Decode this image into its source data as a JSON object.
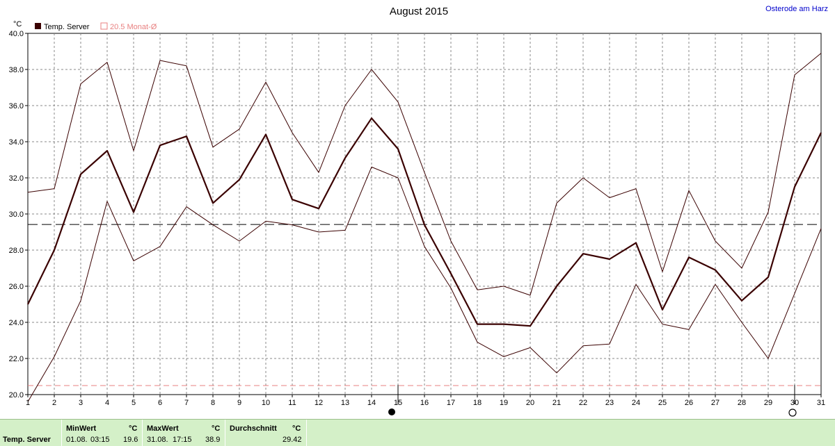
{
  "chart_data": {
    "type": "line",
    "title": "August 2015",
    "location": "Osterode am Harz",
    "ylabel": "°C",
    "ylim": [
      20.0,
      40.0
    ],
    "yticks": [
      "20.0",
      "22.0",
      "24.0",
      "26.0",
      "28.0",
      "30.0",
      "32.0",
      "34.0",
      "36.0",
      "38.0",
      "40.0"
    ],
    "x": [
      1,
      2,
      3,
      4,
      5,
      6,
      7,
      8,
      9,
      10,
      11,
      12,
      13,
      14,
      15,
      16,
      17,
      18,
      19,
      20,
      21,
      22,
      23,
      24,
      25,
      26,
      27,
      28,
      29,
      30,
      31
    ],
    "grid": true,
    "legend": [
      {
        "label": "Temp. Server",
        "color": "#3a0000"
      },
      {
        "label": "20.5 Monat-Ø",
        "color": "#e88080"
      }
    ],
    "series": [
      {
        "name": "Temp. Server",
        "kind": "mean",
        "color": "#3a0000",
        "values": [
          25.0,
          28.0,
          32.2,
          33.5,
          30.1,
          33.8,
          34.3,
          30.6,
          31.9,
          34.4,
          30.8,
          30.3,
          33.1,
          35.3,
          33.6,
          29.4,
          26.7,
          23.9,
          23.9,
          23.8,
          26.0,
          27.8,
          27.5,
          28.4,
          24.7,
          27.6,
          26.9,
          25.2,
          26.5,
          31.5,
          34.5
        ]
      },
      {
        "kind": "max",
        "color": "#3a0000",
        "values": [
          31.2,
          31.4,
          37.2,
          38.4,
          33.5,
          38.5,
          38.2,
          33.7,
          34.7,
          37.3,
          34.5,
          32.3,
          36.0,
          38.0,
          36.2,
          32.3,
          28.5,
          25.8,
          26.0,
          25.5,
          30.6,
          32.0,
          30.9,
          31.4,
          26.8,
          31.3,
          28.5,
          27.0,
          30.1,
          37.7,
          38.9
        ]
      },
      {
        "kind": "min",
        "color": "#3a0000",
        "values": [
          19.6,
          22.1,
          25.2,
          30.7,
          27.4,
          28.2,
          30.4,
          29.4,
          28.5,
          29.6,
          29.4,
          29.0,
          29.1,
          32.6,
          32.0,
          28.2,
          25.9,
          22.9,
          22.1,
          22.6,
          21.2,
          22.7,
          22.8,
          26.1,
          23.9,
          23.6,
          26.1,
          24.0,
          22.0,
          25.6,
          29.2
        ]
      }
    ],
    "reference_lines": [
      {
        "value": 29.42,
        "color": "#000000"
      },
      {
        "value": 20.5,
        "color": "#e88080"
      }
    ],
    "markers": [
      {
        "x": 15,
        "icon": "full-moon-icon"
      },
      {
        "x": 30,
        "icon": "new-moon-icon"
      }
    ]
  },
  "summary": {
    "row_label": "Temp. Server",
    "min": {
      "header": "MinWert",
      "unit": "°C",
      "date": "01.08.",
      "time": "03:15",
      "value": "19.6"
    },
    "max": {
      "header": "MaxWert",
      "unit": "°C",
      "date": "31.08.",
      "time": "17:15",
      "value": "38.9"
    },
    "avg": {
      "header": "Durchschnitt",
      "unit": "°C",
      "value": "29.42"
    }
  }
}
